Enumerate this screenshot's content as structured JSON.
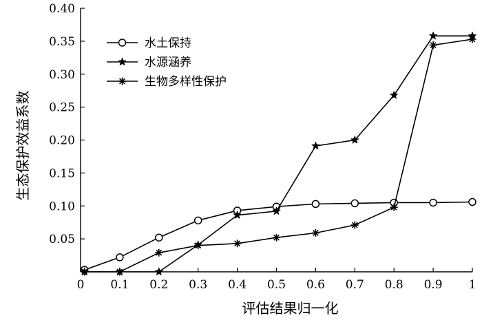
{
  "chart_data": {
    "type": "line",
    "xlabel": "评估结果归一化",
    "ylabel": "生态保护效益系数",
    "xlim": [
      0,
      1
    ],
    "ylim": [
      0,
      0.4
    ],
    "x_ticks": [
      {
        "value": 0,
        "label": "0"
      },
      {
        "value": 0.1,
        "label": "0.1"
      },
      {
        "value": 0.2,
        "label": "0.2"
      },
      {
        "value": 0.3,
        "label": "0.3"
      },
      {
        "value": 0.4,
        "label": "0.4"
      },
      {
        "value": 0.5,
        "label": "0.5"
      },
      {
        "value": 0.6,
        "label": "0.6"
      },
      {
        "value": 0.7,
        "label": "0.7"
      },
      {
        "value": 0.8,
        "label": "0.8"
      },
      {
        "value": 0.9,
        "label": "0.9"
      },
      {
        "value": 1,
        "label": "1"
      }
    ],
    "y_ticks": [
      {
        "value": 0.05,
        "label": "0.05"
      },
      {
        "value": 0.1,
        "label": "0.10"
      },
      {
        "value": 0.15,
        "label": "0.15"
      },
      {
        "value": 0.2,
        "label": "0.20"
      },
      {
        "value": 0.25,
        "label": "0.25"
      },
      {
        "value": 0.3,
        "label": "0.30"
      },
      {
        "value": 0.35,
        "label": "0.35"
      },
      {
        "value": 0.4,
        "label": "0.40"
      }
    ],
    "legend": "top-left",
    "grid": false,
    "series": [
      {
        "name": "水土保持",
        "marker": "circle",
        "points": [
          [
            0.01,
            0.003
          ],
          [
            0.1,
            0.022
          ],
          [
            0.2,
            0.052
          ],
          [
            0.3,
            0.078
          ],
          [
            0.4,
            0.093
          ],
          [
            0.5,
            0.099
          ],
          [
            0.6,
            0.103
          ],
          [
            0.7,
            0.104
          ],
          [
            0.8,
            0.105
          ],
          [
            0.9,
            0.105
          ],
          [
            1.0,
            0.106
          ]
        ]
      },
      {
        "name": "水源涵养",
        "marker": "star",
        "points": [
          [
            0.01,
            0.0
          ],
          [
            0.1,
            0.0
          ],
          [
            0.2,
            0.0
          ],
          [
            0.3,
            0.041
          ],
          [
            0.4,
            0.086
          ],
          [
            0.5,
            0.092
          ],
          [
            0.6,
            0.191
          ],
          [
            0.7,
            0.2
          ],
          [
            0.8,
            0.268
          ],
          [
            0.9,
            0.358
          ],
          [
            1.0,
            0.358
          ]
        ]
      },
      {
        "name": "生物多样性保护",
        "marker": "asterisk",
        "points": [
          [
            0.01,
            0.0
          ],
          [
            0.1,
            0.0
          ],
          [
            0.2,
            0.029
          ],
          [
            0.3,
            0.04
          ],
          [
            0.4,
            0.043
          ],
          [
            0.5,
            0.052
          ],
          [
            0.6,
            0.059
          ],
          [
            0.7,
            0.071
          ],
          [
            0.8,
            0.098
          ],
          [
            0.9,
            0.344
          ],
          [
            1.0,
            0.353
          ]
        ]
      }
    ]
  }
}
